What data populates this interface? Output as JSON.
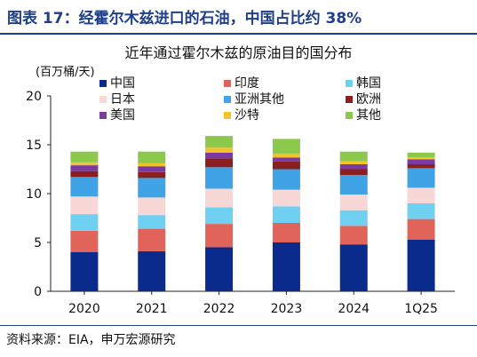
{
  "header": {
    "title": "图表 17：经霍尔木兹进口的石油，中国占比约 38%"
  },
  "source": "资料来源：EIA，申万宏源研究",
  "colors": {
    "header": "#1f3f86",
    "series": [
      "#0a2a8c",
      "#e06459",
      "#6fd0f2",
      "#f7d8d6",
      "#3fa3e6",
      "#8b1f1f",
      "#7a3aa0",
      "#f6c22a",
      "#8cc84b"
    ]
  },
  "chart_data": {
    "type": "bar",
    "stacked": true,
    "title": "近年通过霍尔木兹的原油目的国分布",
    "ylabel": "(百万桶/天)",
    "categories": [
      "2020",
      "2021",
      "2022",
      "2023",
      "2024",
      "1Q25"
    ],
    "ylim": [
      0,
      20
    ],
    "yticks": [
      0,
      5,
      10,
      15,
      20
    ],
    "grid": false,
    "legend_position": "top",
    "series": [
      {
        "name": "中国",
        "values": [
          4.0,
          4.1,
          4.5,
          5.0,
          4.8,
          5.3
        ]
      },
      {
        "name": "印度",
        "values": [
          2.2,
          2.3,
          2.4,
          2.0,
          1.9,
          2.1
        ]
      },
      {
        "name": "韩国",
        "values": [
          1.7,
          1.4,
          1.7,
          1.7,
          1.6,
          1.6
        ]
      },
      {
        "name": "日本",
        "values": [
          1.8,
          1.8,
          1.9,
          1.7,
          1.6,
          1.6
        ]
      },
      {
        "name": "亚洲其他",
        "values": [
          2.0,
          2.0,
          2.2,
          2.1,
          2.0,
          2.0
        ]
      },
      {
        "name": "欧洲",
        "values": [
          0.6,
          0.6,
          0.9,
          0.8,
          0.6,
          0.4
        ]
      },
      {
        "name": "美国",
        "values": [
          0.6,
          0.6,
          0.6,
          0.4,
          0.5,
          0.5
        ]
      },
      {
        "name": "沙特",
        "values": [
          0.3,
          0.3,
          0.5,
          0.4,
          0.3,
          0.2
        ]
      },
      {
        "name": "其他",
        "values": [
          1.1,
          1.2,
          1.2,
          1.5,
          1.0,
          0.5
        ]
      }
    ]
  }
}
